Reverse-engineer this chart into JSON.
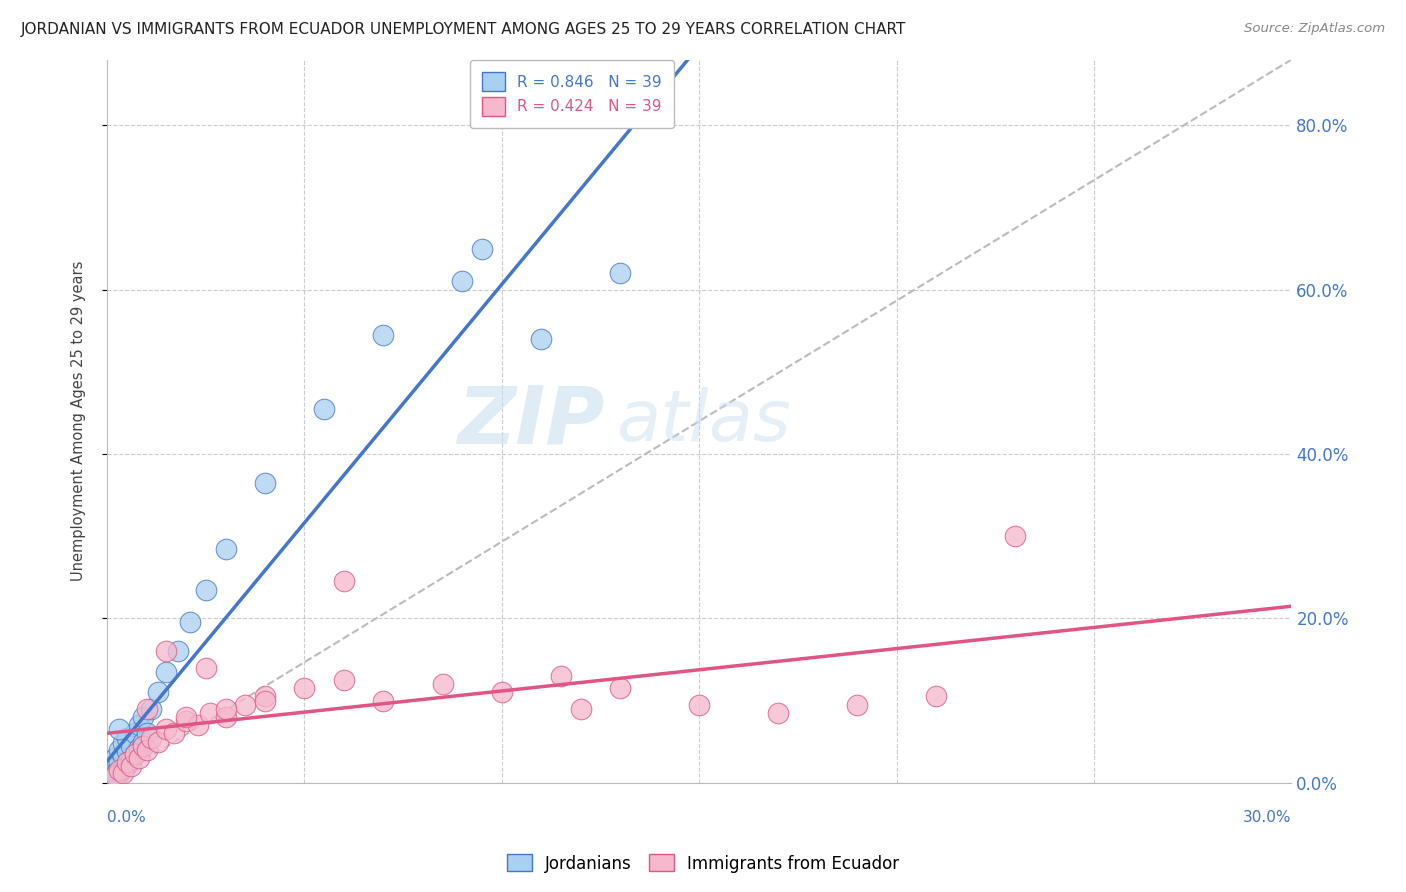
{
  "title": "JORDANIAN VS IMMIGRANTS FROM ECUADOR UNEMPLOYMENT AMONG AGES 25 TO 29 YEARS CORRELATION CHART",
  "source": "Source: ZipAtlas.com",
  "ylabel": "Unemployment Among Ages 25 to 29 years",
  "blue_R": 0.846,
  "blue_N": 39,
  "pink_R": 0.424,
  "pink_N": 39,
  "blue_color": "#a8d0f0",
  "pink_color": "#f5b8cc",
  "blue_line_color": "#4477cc",
  "pink_line_color": "#e05585",
  "watermark_zip": "ZIP",
  "watermark_atlas": "atlas",
  "legend_labels": [
    "Jordanians",
    "Immigrants from Ecuador"
  ],
  "blue_x": [
    0.001,
    0.001,
    0.002,
    0.002,
    0.002,
    0.003,
    0.003,
    0.003,
    0.004,
    0.004,
    0.004,
    0.005,
    0.005,
    0.005,
    0.006,
    0.006,
    0.007,
    0.007,
    0.008,
    0.008,
    0.009,
    0.009,
    0.01,
    0.011,
    0.013,
    0.015,
    0.018,
    0.021,
    0.025,
    0.03,
    0.04,
    0.055,
    0.07,
    0.09,
    0.11,
    0.13,
    0.002,
    0.003,
    0.095
  ],
  "blue_y": [
    0.005,
    0.015,
    0.008,
    0.02,
    0.03,
    0.012,
    0.025,
    0.04,
    0.018,
    0.032,
    0.048,
    0.022,
    0.038,
    0.055,
    0.028,
    0.045,
    0.035,
    0.06,
    0.042,
    0.07,
    0.05,
    0.08,
    0.06,
    0.09,
    0.11,
    0.135,
    0.16,
    0.195,
    0.235,
    0.285,
    0.365,
    0.455,
    0.545,
    0.61,
    0.54,
    0.62,
    0.01,
    0.065,
    0.65
  ],
  "pink_x": [
    0.002,
    0.003,
    0.004,
    0.005,
    0.006,
    0.007,
    0.008,
    0.009,
    0.01,
    0.011,
    0.013,
    0.015,
    0.017,
    0.02,
    0.023,
    0.026,
    0.03,
    0.035,
    0.04,
    0.05,
    0.06,
    0.07,
    0.085,
    0.1,
    0.115,
    0.13,
    0.15,
    0.17,
    0.19,
    0.21,
    0.23,
    0.01,
    0.015,
    0.02,
    0.025,
    0.03,
    0.04,
    0.06,
    0.12
  ],
  "pink_y": [
    0.008,
    0.015,
    0.012,
    0.025,
    0.02,
    0.035,
    0.03,
    0.045,
    0.04,
    0.055,
    0.05,
    0.065,
    0.06,
    0.075,
    0.07,
    0.085,
    0.08,
    0.095,
    0.105,
    0.115,
    0.125,
    0.1,
    0.12,
    0.11,
    0.13,
    0.115,
    0.095,
    0.085,
    0.095,
    0.105,
    0.3,
    0.09,
    0.16,
    0.08,
    0.14,
    0.09,
    0.1,
    0.245,
    0.09
  ],
  "xlim": [
    0.0,
    0.3
  ],
  "ylim": [
    0.0,
    0.88
  ],
  "yticks": [
    0.0,
    0.2,
    0.4,
    0.6,
    0.8
  ],
  "grid_color": "#cccccc",
  "background_color": "#ffffff",
  "title_fontsize": 11,
  "axis_label_fontsize": 10.5
}
